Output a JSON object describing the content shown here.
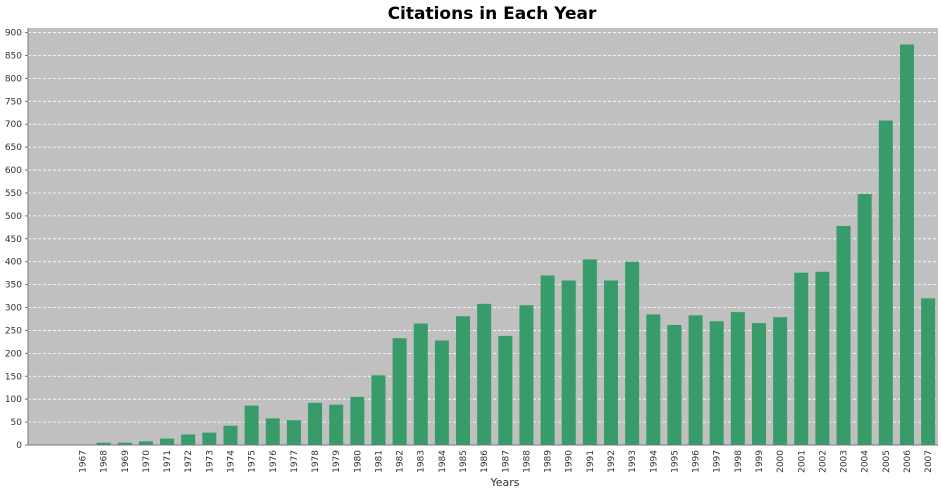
{
  "chart_data": {
    "type": "bar",
    "title": "Citations in Each Year",
    "xlabel": "Years",
    "ylabel": "",
    "ylim": [
      0,
      910
    ],
    "yticks": [
      0,
      50,
      100,
      150,
      200,
      250,
      300,
      350,
      400,
      450,
      500,
      550,
      600,
      650,
      700,
      750,
      800,
      850,
      900
    ],
    "grid": true,
    "legend": "none",
    "colors": {
      "bar": "#379b6a",
      "plot_background": "#c0c0c0",
      "gridline": "#ffffff",
      "page_background": "#ffffff"
    },
    "categories": [
      "1967",
      "1968",
      "1969",
      "1970",
      "1971",
      "1972",
      "1973",
      "1974",
      "1975",
      "1976",
      "1977",
      "1978",
      "1979",
      "1980",
      "1981",
      "1982",
      "1983",
      "1984",
      "1985",
      "1986",
      "1987",
      "1988",
      "1989",
      "1990",
      "1991",
      "1992",
      "1993",
      "1994",
      "1995",
      "1996",
      "1997",
      "1998",
      "1999",
      "2000",
      "2001",
      "2002",
      "2003",
      "2004",
      "2005",
      "2006",
      "2007"
    ],
    "values": [
      1,
      5,
      5,
      8,
      14,
      23,
      27,
      42,
      86,
      58,
      54,
      92,
      88,
      105,
      152,
      233,
      265,
      228,
      281,
      308,
      238,
      305,
      370,
      359,
      405,
      359,
      400,
      285,
      262,
      283,
      270,
      290,
      266,
      279,
      376,
      378,
      478,
      548,
      708,
      874,
      320
    ]
  }
}
